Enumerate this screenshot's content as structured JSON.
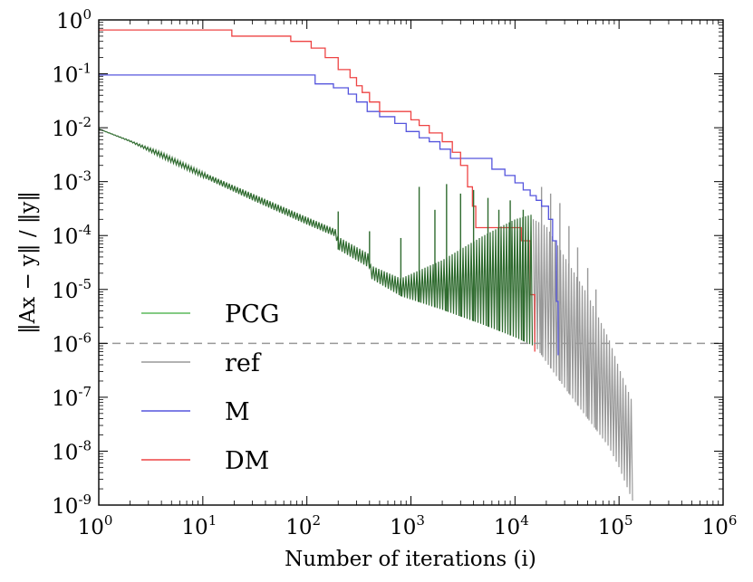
{
  "chart_data": {
    "type": "line",
    "xscale": "log",
    "yscale": "log",
    "xlim": [
      1,
      1000000
    ],
    "ylim": [
      1e-09,
      1
    ],
    "xlabel": "Number of iterations (i)",
    "ylabel": "‖Ax − y‖ / ‖y‖",
    "x_ticks": [
      {
        "value": 1,
        "base": "10",
        "exp": "0"
      },
      {
        "value": 10,
        "base": "10",
        "exp": "1"
      },
      {
        "value": 100,
        "base": "10",
        "exp": "2"
      },
      {
        "value": 1000,
        "base": "10",
        "exp": "3"
      },
      {
        "value": 10000,
        "base": "10",
        "exp": "4"
      },
      {
        "value": 100000,
        "base": "10",
        "exp": "5"
      },
      {
        "value": 1000000,
        "base": "10",
        "exp": "6"
      }
    ],
    "y_ticks": [
      {
        "value": 1,
        "base": "10",
        "exp": "0"
      },
      {
        "value": 0.1,
        "base": "10",
        "exp": "-1"
      },
      {
        "value": 0.01,
        "base": "10",
        "exp": "-2"
      },
      {
        "value": 0.001,
        "base": "10",
        "exp": "-3"
      },
      {
        "value": 0.0001,
        "base": "10",
        "exp": "-4"
      },
      {
        "value": 1e-05,
        "base": "10",
        "exp": "-5"
      },
      {
        "value": 1e-06,
        "base": "10",
        "exp": "-6"
      },
      {
        "value": 1e-07,
        "base": "10",
        "exp": "-7"
      },
      {
        "value": 1e-08,
        "base": "10",
        "exp": "-8"
      },
      {
        "value": 1e-09,
        "base": "10",
        "exp": "-9"
      }
    ],
    "reference_line": {
      "value": 1e-06,
      "color": "#999999",
      "style": "dashed"
    },
    "series": [
      {
        "name": "PCG",
        "color": "#2f6b2f",
        "legend_color": "#5cb85c",
        "style": "oscillating",
        "envelope_low": [
          [
            1,
            0.0095
          ],
          [
            2,
            0.0055
          ],
          [
            4,
            0.0028
          ],
          [
            10,
            0.0012
          ],
          [
            30,
            0.00045
          ],
          [
            100,
            0.00016
          ],
          [
            190,
            9.5e-05
          ],
          [
            200,
            5.5e-05
          ],
          [
            400,
            2.5e-05
          ],
          [
            410,
            1.6e-05
          ],
          [
            800,
            7.5e-06
          ],
          [
            2000,
            4.2e-06
          ],
          [
            5000,
            2.2e-06
          ],
          [
            10000,
            1.3e-06
          ],
          [
            15000,
            9e-07
          ]
        ],
        "envelope_high": [
          [
            1,
            0.0095
          ],
          [
            2,
            0.0058
          ],
          [
            4,
            0.0035
          ],
          [
            10,
            0.0015
          ],
          [
            30,
            0.0006
          ],
          [
            100,
            0.00022
          ],
          [
            190,
            0.00013
          ],
          [
            200,
            9.5e-05
          ],
          [
            400,
            4.5e-05
          ],
          [
            410,
            2.8e-05
          ],
          [
            800,
            1.6e-05
          ],
          [
            2000,
            3.5e-05
          ],
          [
            5000,
            0.0001
          ],
          [
            10000,
            0.0002
          ],
          [
            15000,
            0.00025
          ]
        ],
        "spikes": [
          [
            200,
            0.00028
          ],
          [
            400,
            0.00012
          ],
          [
            800,
            9e-05
          ],
          [
            1200,
            0.0008
          ],
          [
            1700,
            0.0003
          ],
          [
            2200,
            0.0009
          ],
          [
            3000,
            0.0006
          ],
          [
            4000,
            0.0007
          ],
          [
            5500,
            0.0005
          ],
          [
            7000,
            0.0003
          ],
          [
            9000,
            0.00045
          ],
          [
            12000,
            0.0003
          ]
        ]
      },
      {
        "name": "ref",
        "color": "#999999",
        "legend_color": "#999999",
        "style": "oscillating",
        "envelope_low": [
          [
            15000,
            1e-06
          ],
          [
            20000,
            4.5e-07
          ],
          [
            30000,
            1.5e-07
          ],
          [
            50000,
            4e-08
          ],
          [
            80000,
            1.2e-08
          ],
          [
            100000,
            5e-09
          ],
          [
            135000,
            1.2e-09
          ]
        ],
        "envelope_high": [
          [
            15000,
            0.0002
          ],
          [
            20000,
            0.00015
          ],
          [
            30000,
            4e-05
          ],
          [
            50000,
            8e-06
          ],
          [
            80000,
            1.2e-06
          ],
          [
            100000,
            3.5e-07
          ],
          [
            135000,
            8e-08
          ]
        ],
        "spikes": [
          [
            18000,
            0.0008
          ],
          [
            22000,
            0.0006
          ],
          [
            27000,
            0.0004
          ],
          [
            33000,
            0.00015
          ],
          [
            40000,
            6e-05
          ],
          [
            50000,
            2.5e-05
          ],
          [
            60000,
            1e-05
          ]
        ]
      },
      {
        "name": "M",
        "color": "#5555dd",
        "legend_color": "#5555dd",
        "style": "step",
        "points": [
          [
            1,
            0.095
          ],
          [
            90,
            0.095
          ],
          [
            120,
            0.065
          ],
          [
            180,
            0.055
          ],
          [
            250,
            0.042
          ],
          [
            300,
            0.03
          ],
          [
            380,
            0.02
          ],
          [
            500,
            0.016
          ],
          [
            700,
            0.012
          ],
          [
            900,
            0.0085
          ],
          [
            1200,
            0.0065
          ],
          [
            1500,
            0.0055
          ],
          [
            1900,
            0.004
          ],
          [
            2400,
            0.0027
          ],
          [
            4500,
            0.0027
          ],
          [
            6000,
            0.0017
          ],
          [
            8000,
            0.0013
          ],
          [
            10000,
            0.00095
          ],
          [
            12000,
            0.0007
          ],
          [
            14000,
            0.00055
          ],
          [
            16000,
            0.00045
          ],
          [
            18000,
            0.00035
          ],
          [
            21000,
            0.0002
          ],
          [
            23000,
            8e-05
          ],
          [
            25000,
            6e-06
          ],
          [
            26000,
            6e-07
          ]
        ]
      },
      {
        "name": "DM",
        "color": "#ee4444",
        "legend_color": "#ee4444",
        "style": "step",
        "points": [
          [
            1,
            0.65
          ],
          [
            14,
            0.65
          ],
          [
            19,
            0.5
          ],
          [
            50,
            0.5
          ],
          [
            70,
            0.4
          ],
          [
            110,
            0.3
          ],
          [
            150,
            0.2
          ],
          [
            200,
            0.12
          ],
          [
            260,
            0.085
          ],
          [
            300,
            0.06
          ],
          [
            340,
            0.045
          ],
          [
            400,
            0.03
          ],
          [
            500,
            0.02
          ],
          [
            850,
            0.02
          ],
          [
            1000,
            0.014
          ],
          [
            1200,
            0.011
          ],
          [
            1500,
            0.008
          ],
          [
            2000,
            0.0055
          ],
          [
            2500,
            0.0035
          ],
          [
            3000,
            0.002
          ],
          [
            3500,
            0.0008
          ],
          [
            3900,
            0.00035
          ],
          [
            4200,
            0.00014
          ],
          [
            9500,
            0.00014
          ],
          [
            11500,
            8e-05
          ],
          [
            14000,
            8e-06
          ],
          [
            15500,
            7e-07
          ]
        ]
      }
    ]
  }
}
